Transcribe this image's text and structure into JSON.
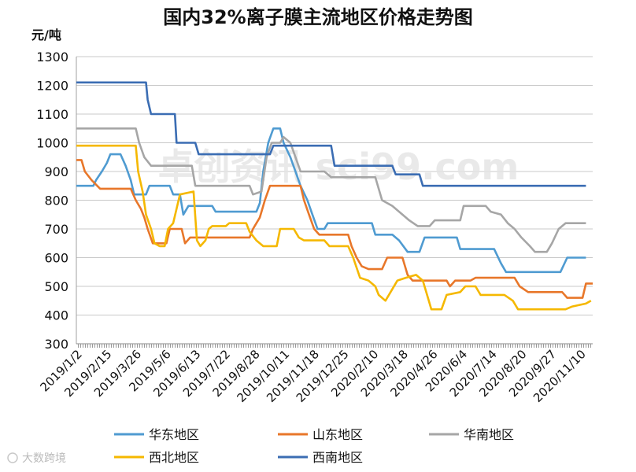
{
  "chart_data": {
    "type": "line",
    "title": "国内32%离子膜主流地区价格走势图",
    "ylabel": "元/吨",
    "xlabel": "",
    "ylim": [
      300,
      1300
    ],
    "yticks": [
      300,
      400,
      500,
      600,
      700,
      800,
      900,
      1000,
      1100,
      1200,
      1300
    ],
    "grid": true,
    "legend_position": "bottom",
    "watermark": "卓创资讯 sci99.com",
    "brand_text": "大数跨境",
    "x_tick_labels": [
      "2019/1/2",
      "2019/2/15",
      "2019/3/26",
      "2019/5/6",
      "2019/6/13",
      "2019/7/22",
      "2019/8/28",
      "2019/10/11",
      "2019/11/18",
      "2019/12/25",
      "2020/2/10",
      "2020/3/18",
      "2020/4/26",
      "2020/6/4",
      "2020/7/14",
      "2020/8/20",
      "2020/9/27",
      "2020/11/10"
    ],
    "series": [
      {
        "name": "华东地区",
        "color": "#4f9bd1",
        "points": [
          [
            0,
            850
          ],
          [
            0.5,
            850
          ],
          [
            0.58,
            870
          ],
          [
            0.75,
            900
          ],
          [
            0.9,
            930
          ],
          [
            1.0,
            960
          ],
          [
            1.3,
            960
          ],
          [
            1.45,
            920
          ],
          [
            1.6,
            870
          ],
          [
            1.7,
            820
          ],
          [
            2.05,
            820
          ],
          [
            2.15,
            850
          ],
          [
            2.75,
            850
          ],
          [
            2.85,
            820
          ],
          [
            3.05,
            820
          ],
          [
            3.15,
            750
          ],
          [
            3.3,
            780
          ],
          [
            4.0,
            780
          ],
          [
            4.1,
            760
          ],
          [
            5.3,
            760
          ],
          [
            5.4,
            790
          ],
          [
            5.5,
            900
          ],
          [
            5.65,
            1000
          ],
          [
            5.8,
            1050
          ],
          [
            6.0,
            1050
          ],
          [
            6.1,
            1000
          ],
          [
            6.3,
            950
          ],
          [
            6.45,
            900
          ],
          [
            6.6,
            850
          ],
          [
            6.8,
            800
          ],
          [
            6.95,
            750
          ],
          [
            7.1,
            700
          ],
          [
            7.3,
            700
          ],
          [
            7.4,
            720
          ],
          [
            8.7,
            720
          ],
          [
            8.8,
            680
          ],
          [
            9.3,
            680
          ],
          [
            9.5,
            660
          ],
          [
            9.75,
            620
          ],
          [
            10.1,
            620
          ],
          [
            10.25,
            670
          ],
          [
            11.2,
            670
          ],
          [
            11.3,
            630
          ],
          [
            12.3,
            630
          ],
          [
            12.5,
            580
          ],
          [
            12.65,
            550
          ],
          [
            14.25,
            550
          ],
          [
            14.45,
            600
          ],
          [
            15.0,
            600
          ]
        ]
      },
      {
        "name": "山东地区",
        "color": "#e8772a",
        "points": [
          [
            0,
            940
          ],
          [
            0.15,
            940
          ],
          [
            0.25,
            900
          ],
          [
            0.45,
            870
          ],
          [
            0.7,
            840
          ],
          [
            1.6,
            840
          ],
          [
            1.75,
            800
          ],
          [
            1.9,
            770
          ],
          [
            2.0,
            740
          ],
          [
            2.1,
            700
          ],
          [
            2.25,
            650
          ],
          [
            2.65,
            650
          ],
          [
            2.75,
            700
          ],
          [
            3.1,
            700
          ],
          [
            3.2,
            650
          ],
          [
            3.35,
            670
          ],
          [
            5.1,
            670
          ],
          [
            5.2,
            700
          ],
          [
            5.4,
            740
          ],
          [
            5.55,
            800
          ],
          [
            5.7,
            850
          ],
          [
            6.6,
            850
          ],
          [
            6.7,
            800
          ],
          [
            6.85,
            750
          ],
          [
            7.0,
            700
          ],
          [
            7.15,
            680
          ],
          [
            8.0,
            680
          ],
          [
            8.1,
            640
          ],
          [
            8.25,
            600
          ],
          [
            8.4,
            570
          ],
          [
            8.6,
            560
          ],
          [
            9.0,
            560
          ],
          [
            9.15,
            600
          ],
          [
            9.6,
            600
          ],
          [
            9.75,
            540
          ],
          [
            9.9,
            520
          ],
          [
            10.9,
            520
          ],
          [
            11.0,
            500
          ],
          [
            11.15,
            520
          ],
          [
            11.6,
            520
          ],
          [
            11.75,
            530
          ],
          [
            12.9,
            530
          ],
          [
            13.05,
            500
          ],
          [
            13.3,
            480
          ],
          [
            14.3,
            480
          ],
          [
            14.45,
            460
          ],
          [
            14.9,
            460
          ],
          [
            15.0,
            510
          ],
          [
            15.2,
            510
          ]
        ]
      },
      {
        "name": "华南地区",
        "color": "#a6a6a6",
        "points": [
          [
            0,
            1050
          ],
          [
            1.75,
            1050
          ],
          [
            1.85,
            1000
          ],
          [
            2.0,
            950
          ],
          [
            2.2,
            920
          ],
          [
            3.4,
            920
          ],
          [
            3.5,
            850
          ],
          [
            5.1,
            850
          ],
          [
            5.2,
            820
          ],
          [
            5.45,
            830
          ],
          [
            5.6,
            950
          ],
          [
            5.75,
            1000
          ],
          [
            6.0,
            1000
          ],
          [
            6.1,
            1020
          ],
          [
            6.3,
            1000
          ],
          [
            6.45,
            950
          ],
          [
            6.6,
            900
          ],
          [
            7.3,
            900
          ],
          [
            7.5,
            880
          ],
          [
            8.8,
            880
          ],
          [
            9.0,
            800
          ],
          [
            9.3,
            780
          ],
          [
            9.6,
            750
          ],
          [
            9.8,
            730
          ],
          [
            10.05,
            710
          ],
          [
            10.4,
            710
          ],
          [
            10.55,
            730
          ],
          [
            11.3,
            730
          ],
          [
            11.4,
            780
          ],
          [
            12.05,
            780
          ],
          [
            12.2,
            760
          ],
          [
            12.5,
            750
          ],
          [
            12.7,
            720
          ],
          [
            12.9,
            700
          ],
          [
            13.1,
            670
          ],
          [
            13.35,
            640
          ],
          [
            13.5,
            620
          ],
          [
            13.85,
            620
          ],
          [
            14.0,
            650
          ],
          [
            14.2,
            700
          ],
          [
            14.4,
            720
          ],
          [
            15.0,
            720
          ]
        ]
      },
      {
        "name": "西北地区",
        "color": "#f5b800",
        "points": [
          [
            0,
            990
          ],
          [
            1.75,
            990
          ],
          [
            1.82,
            900
          ],
          [
            1.95,
            830
          ],
          [
            2.05,
            750
          ],
          [
            2.2,
            700
          ],
          [
            2.3,
            650
          ],
          [
            2.45,
            640
          ],
          [
            2.6,
            640
          ],
          [
            2.7,
            700
          ],
          [
            2.85,
            720
          ],
          [
            3.05,
            820
          ],
          [
            3.45,
            830
          ],
          [
            3.55,
            660
          ],
          [
            3.65,
            640
          ],
          [
            3.8,
            660
          ],
          [
            3.9,
            700
          ],
          [
            4.0,
            710
          ],
          [
            4.4,
            710
          ],
          [
            4.5,
            720
          ],
          [
            5.0,
            720
          ],
          [
            5.1,
            690
          ],
          [
            5.3,
            660
          ],
          [
            5.5,
            640
          ],
          [
            5.9,
            640
          ],
          [
            6.0,
            700
          ],
          [
            6.4,
            700
          ],
          [
            6.55,
            670
          ],
          [
            6.7,
            660
          ],
          [
            7.3,
            660
          ],
          [
            7.45,
            640
          ],
          [
            8.0,
            640
          ],
          [
            8.15,
            600
          ],
          [
            8.35,
            530
          ],
          [
            8.6,
            520
          ],
          [
            8.8,
            500
          ],
          [
            8.9,
            470
          ],
          [
            9.1,
            450
          ],
          [
            9.25,
            480
          ],
          [
            9.45,
            520
          ],
          [
            9.7,
            530
          ],
          [
            10.0,
            540
          ],
          [
            10.2,
            520
          ],
          [
            10.35,
            460
          ],
          [
            10.45,
            420
          ],
          [
            10.75,
            420
          ],
          [
            10.9,
            470
          ],
          [
            11.3,
            480
          ],
          [
            11.45,
            500
          ],
          [
            11.75,
            500
          ],
          [
            11.9,
            470
          ],
          [
            12.6,
            470
          ],
          [
            12.85,
            450
          ],
          [
            13.0,
            420
          ],
          [
            14.4,
            420
          ],
          [
            14.6,
            430
          ],
          [
            15.0,
            440
          ],
          [
            15.15,
            450
          ]
        ]
      },
      {
        "name": "西南地区",
        "color": "#3b6db3",
        "points": [
          [
            0,
            1210
          ],
          [
            2.05,
            1210
          ],
          [
            2.1,
            1150
          ],
          [
            2.2,
            1100
          ],
          [
            2.9,
            1100
          ],
          [
            2.95,
            1000
          ],
          [
            3.5,
            1000
          ],
          [
            3.6,
            960
          ],
          [
            5.7,
            960
          ],
          [
            5.8,
            990
          ],
          [
            7.5,
            990
          ],
          [
            7.6,
            920
          ],
          [
            9.3,
            920
          ],
          [
            9.4,
            890
          ],
          [
            10.1,
            890
          ],
          [
            10.2,
            850
          ],
          [
            15.0,
            850
          ]
        ]
      }
    ],
    "x_range": [
      0,
      15.2
    ]
  }
}
